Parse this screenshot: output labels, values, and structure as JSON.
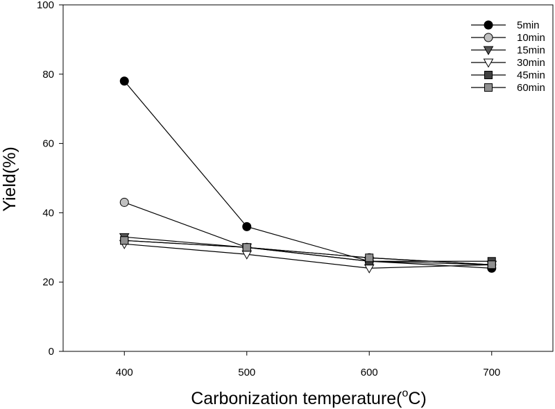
{
  "chart_data": {
    "type": "line",
    "xlabel": "Carbonization temperature(",
    "xlabel_sup": "o",
    "xlabel_suffix": "C)",
    "ylabel": "Yield(%)",
    "x": [
      400,
      500,
      600,
      700
    ],
    "xlim": [
      350,
      750
    ],
    "ylim": [
      0,
      100
    ],
    "xticks": [
      400,
      500,
      600,
      700
    ],
    "yticks": [
      0,
      20,
      40,
      60,
      80,
      100
    ],
    "grid": false,
    "legend": "top-right",
    "series": [
      {
        "name": "5min",
        "marker": "circle",
        "fill": "#000000",
        "values": [
          78,
          36,
          26,
          24
        ]
      },
      {
        "name": "10min",
        "marker": "circle",
        "fill": "#c0c0c0",
        "values": [
          43,
          30,
          27,
          25
        ]
      },
      {
        "name": "15min",
        "marker": "triangle-down",
        "fill": "#555555",
        "values": [
          33,
          30,
          26,
          25
        ]
      },
      {
        "name": "30min",
        "marker": "triangle-down",
        "fill": "#ffffff",
        "values": [
          31,
          28,
          24,
          25
        ]
      },
      {
        "name": "45min",
        "marker": "square",
        "fill": "#404040",
        "values": [
          32,
          30,
          26,
          26
        ]
      },
      {
        "name": "60min",
        "marker": "square",
        "fill": "#909090",
        "values": [
          32,
          30,
          27,
          25
        ]
      }
    ]
  }
}
